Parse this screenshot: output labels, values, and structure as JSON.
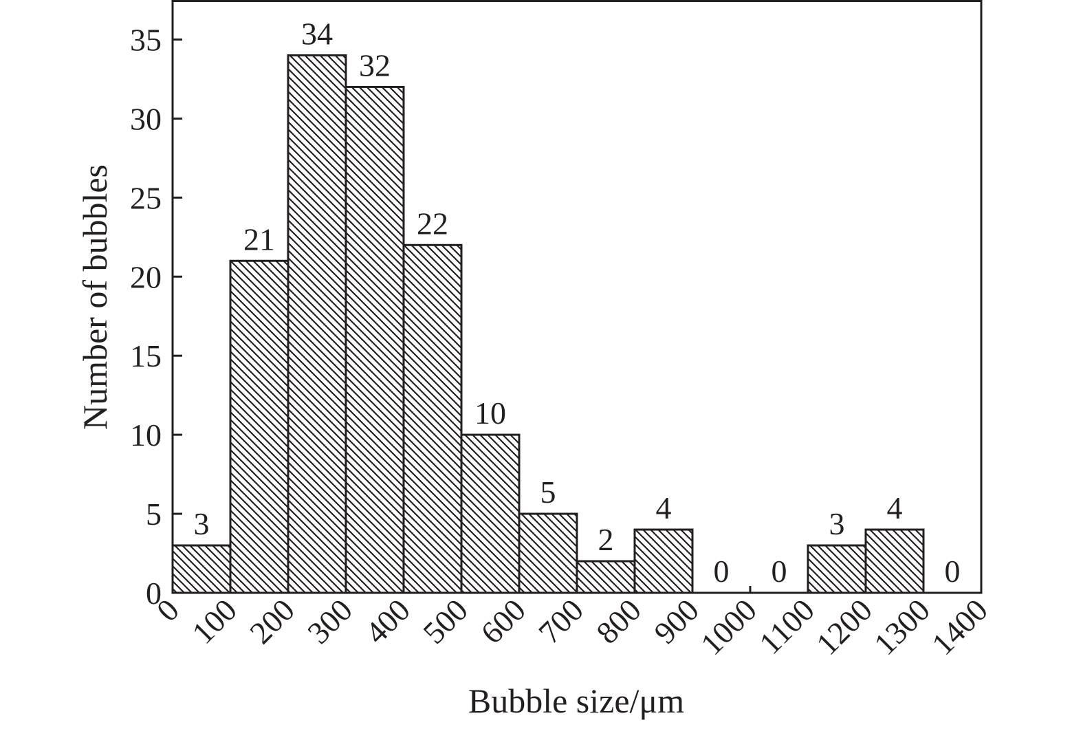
{
  "chart_data": {
    "type": "bar",
    "title": "",
    "xlabel": "Bubble size/μm",
    "ylabel": "Number of bubbles",
    "bin_edges": [
      0,
      100,
      200,
      300,
      400,
      500,
      600,
      700,
      800,
      900,
      1000,
      1100,
      1200,
      1300,
      1400
    ],
    "x_tick_labels": [
      "0",
      "100",
      "200",
      "300",
      "400",
      "500",
      "600",
      "700",
      "800",
      "900",
      "1000",
      "1100",
      "1200",
      "1300",
      "1400"
    ],
    "values": [
      3,
      21,
      34,
      32,
      22,
      10,
      5,
      2,
      4,
      0,
      0,
      3,
      4,
      0
    ],
    "data_labels": [
      "3",
      "21",
      "34",
      "32",
      "22",
      "10",
      "5",
      "2",
      "4",
      "0",
      "0",
      "3",
      "4",
      "0"
    ],
    "y_ticks": [
      0,
      5,
      10,
      15,
      20,
      25,
      30,
      35
    ],
    "y_tick_labels": [
      "0",
      "5",
      "10",
      "15",
      "20",
      "25",
      "30",
      "35"
    ],
    "xlim": [
      0,
      1400
    ],
    "ylim": [
      0,
      37.5
    ],
    "grid": false,
    "legend": "none",
    "bar_fill": "diagonal-hatch",
    "colors": {
      "ink": "#231f20",
      "background": "#ffffff"
    }
  }
}
